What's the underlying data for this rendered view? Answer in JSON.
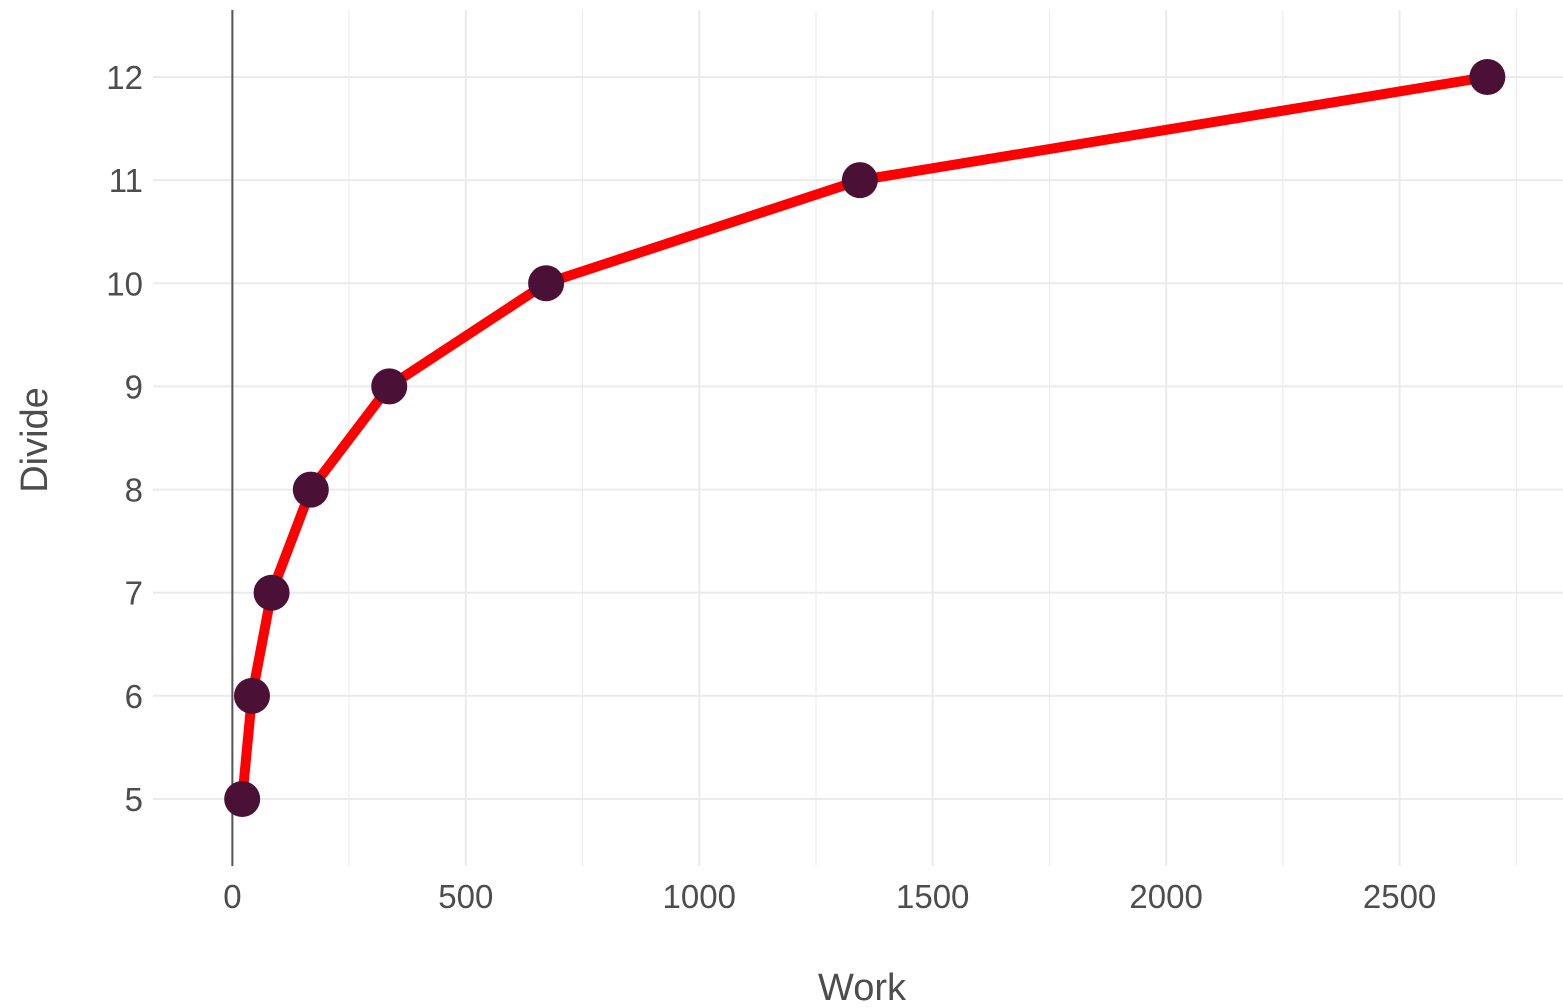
{
  "chart_data": {
    "type": "line",
    "title": "",
    "xlabel": "Work",
    "ylabel": "Divide",
    "xlim": [
      -170,
      2850
    ],
    "ylim": [
      4.35,
      12.65
    ],
    "x_ticks": [
      0,
      500,
      1000,
      1500,
      2000,
      2500
    ],
    "x_tick_labels": [
      "0",
      "500",
      "1000",
      "1500",
      "2000",
      "2500"
    ],
    "y_ticks": [
      5,
      6,
      7,
      8,
      9,
      10,
      11,
      12
    ],
    "y_tick_labels": [
      "5",
      "6",
      "7",
      "8",
      "9",
      "10",
      "11",
      "12"
    ],
    "grid": true,
    "vline_x": 0,
    "line_color": "#ff0000",
    "point_color": "#4a1035",
    "gridline_color": "#ebebeb",
    "axis_line_color": "#555555",
    "series": [
      {
        "x": [
          21,
          42,
          84,
          168,
          336,
          672,
          1344,
          2688
        ],
        "y": [
          5,
          6,
          7,
          8,
          9,
          10,
          11,
          12
        ]
      }
    ]
  }
}
